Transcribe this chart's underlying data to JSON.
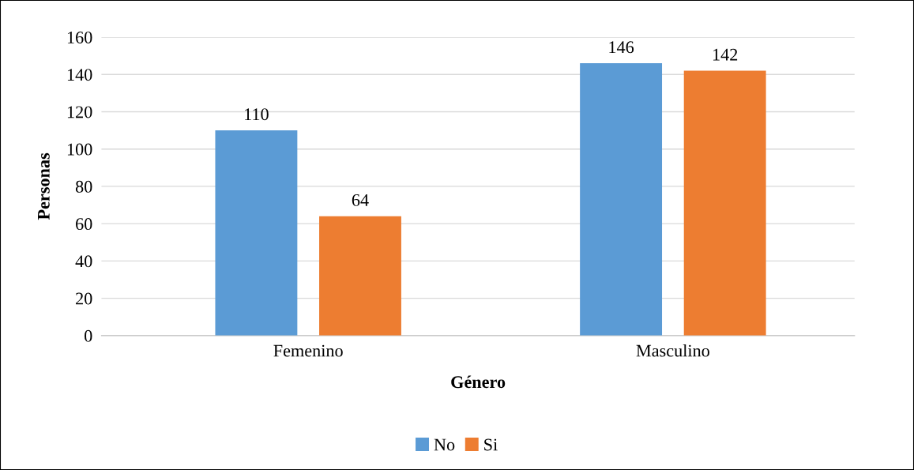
{
  "chart_data": {
    "type": "bar",
    "xlabel": "Género",
    "ylabel": "Personas",
    "categories": [
      "Femenino",
      "Masculino"
    ],
    "series": [
      {
        "name": "No",
        "color": "#5b9bd5",
        "values": [
          110,
          146
        ]
      },
      {
        "name": "Si",
        "color": "#ed7d31",
        "values": [
          64,
          142
        ]
      }
    ],
    "ylim": [
      0,
      160
    ],
    "yticks": [
      0,
      20,
      40,
      60,
      80,
      100,
      120,
      140,
      160
    ],
    "grid": "y",
    "legend": "bottom",
    "data_labels": true
  }
}
